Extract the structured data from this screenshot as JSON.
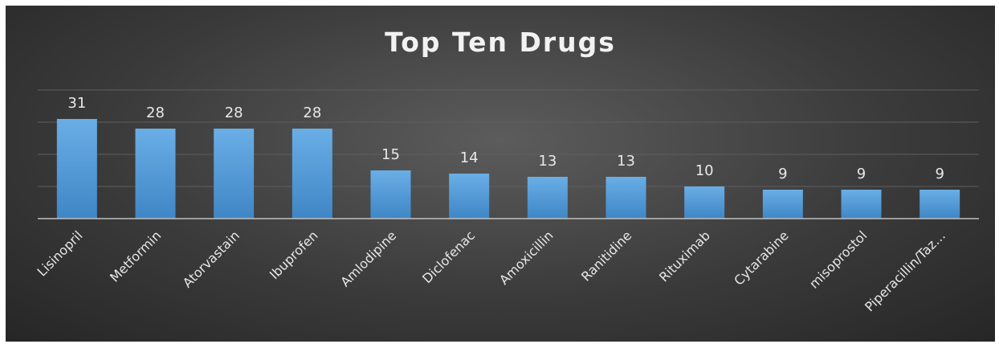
{
  "chart_data": {
    "type": "bar",
    "title": "Top Ten Drugs",
    "categories": [
      "Lisinopril",
      "Metformin",
      "Atorvastain",
      "Ibuprofen",
      "Amlodipine",
      "Diclofenac",
      "Amoxicillin",
      "Ranitidine",
      "Rituximab",
      "Cytarabine",
      "misoprostol",
      "Piperacillin/Taz…"
    ],
    "values": [
      31,
      28,
      28,
      28,
      15,
      14,
      13,
      13,
      10,
      9,
      9,
      9
    ],
    "ylim": [
      0,
      40
    ],
    "gridlines": [
      10,
      20,
      30,
      40
    ],
    "data_labels": true,
    "legend": "none",
    "colors": {
      "bar_top": "#6aaee6",
      "bar_bottom": "#3f86c6",
      "background": "#3b3b3b",
      "text": "#e8e8e8",
      "grid": "#5e5e5e",
      "axis": "#bfbfbf"
    }
  }
}
